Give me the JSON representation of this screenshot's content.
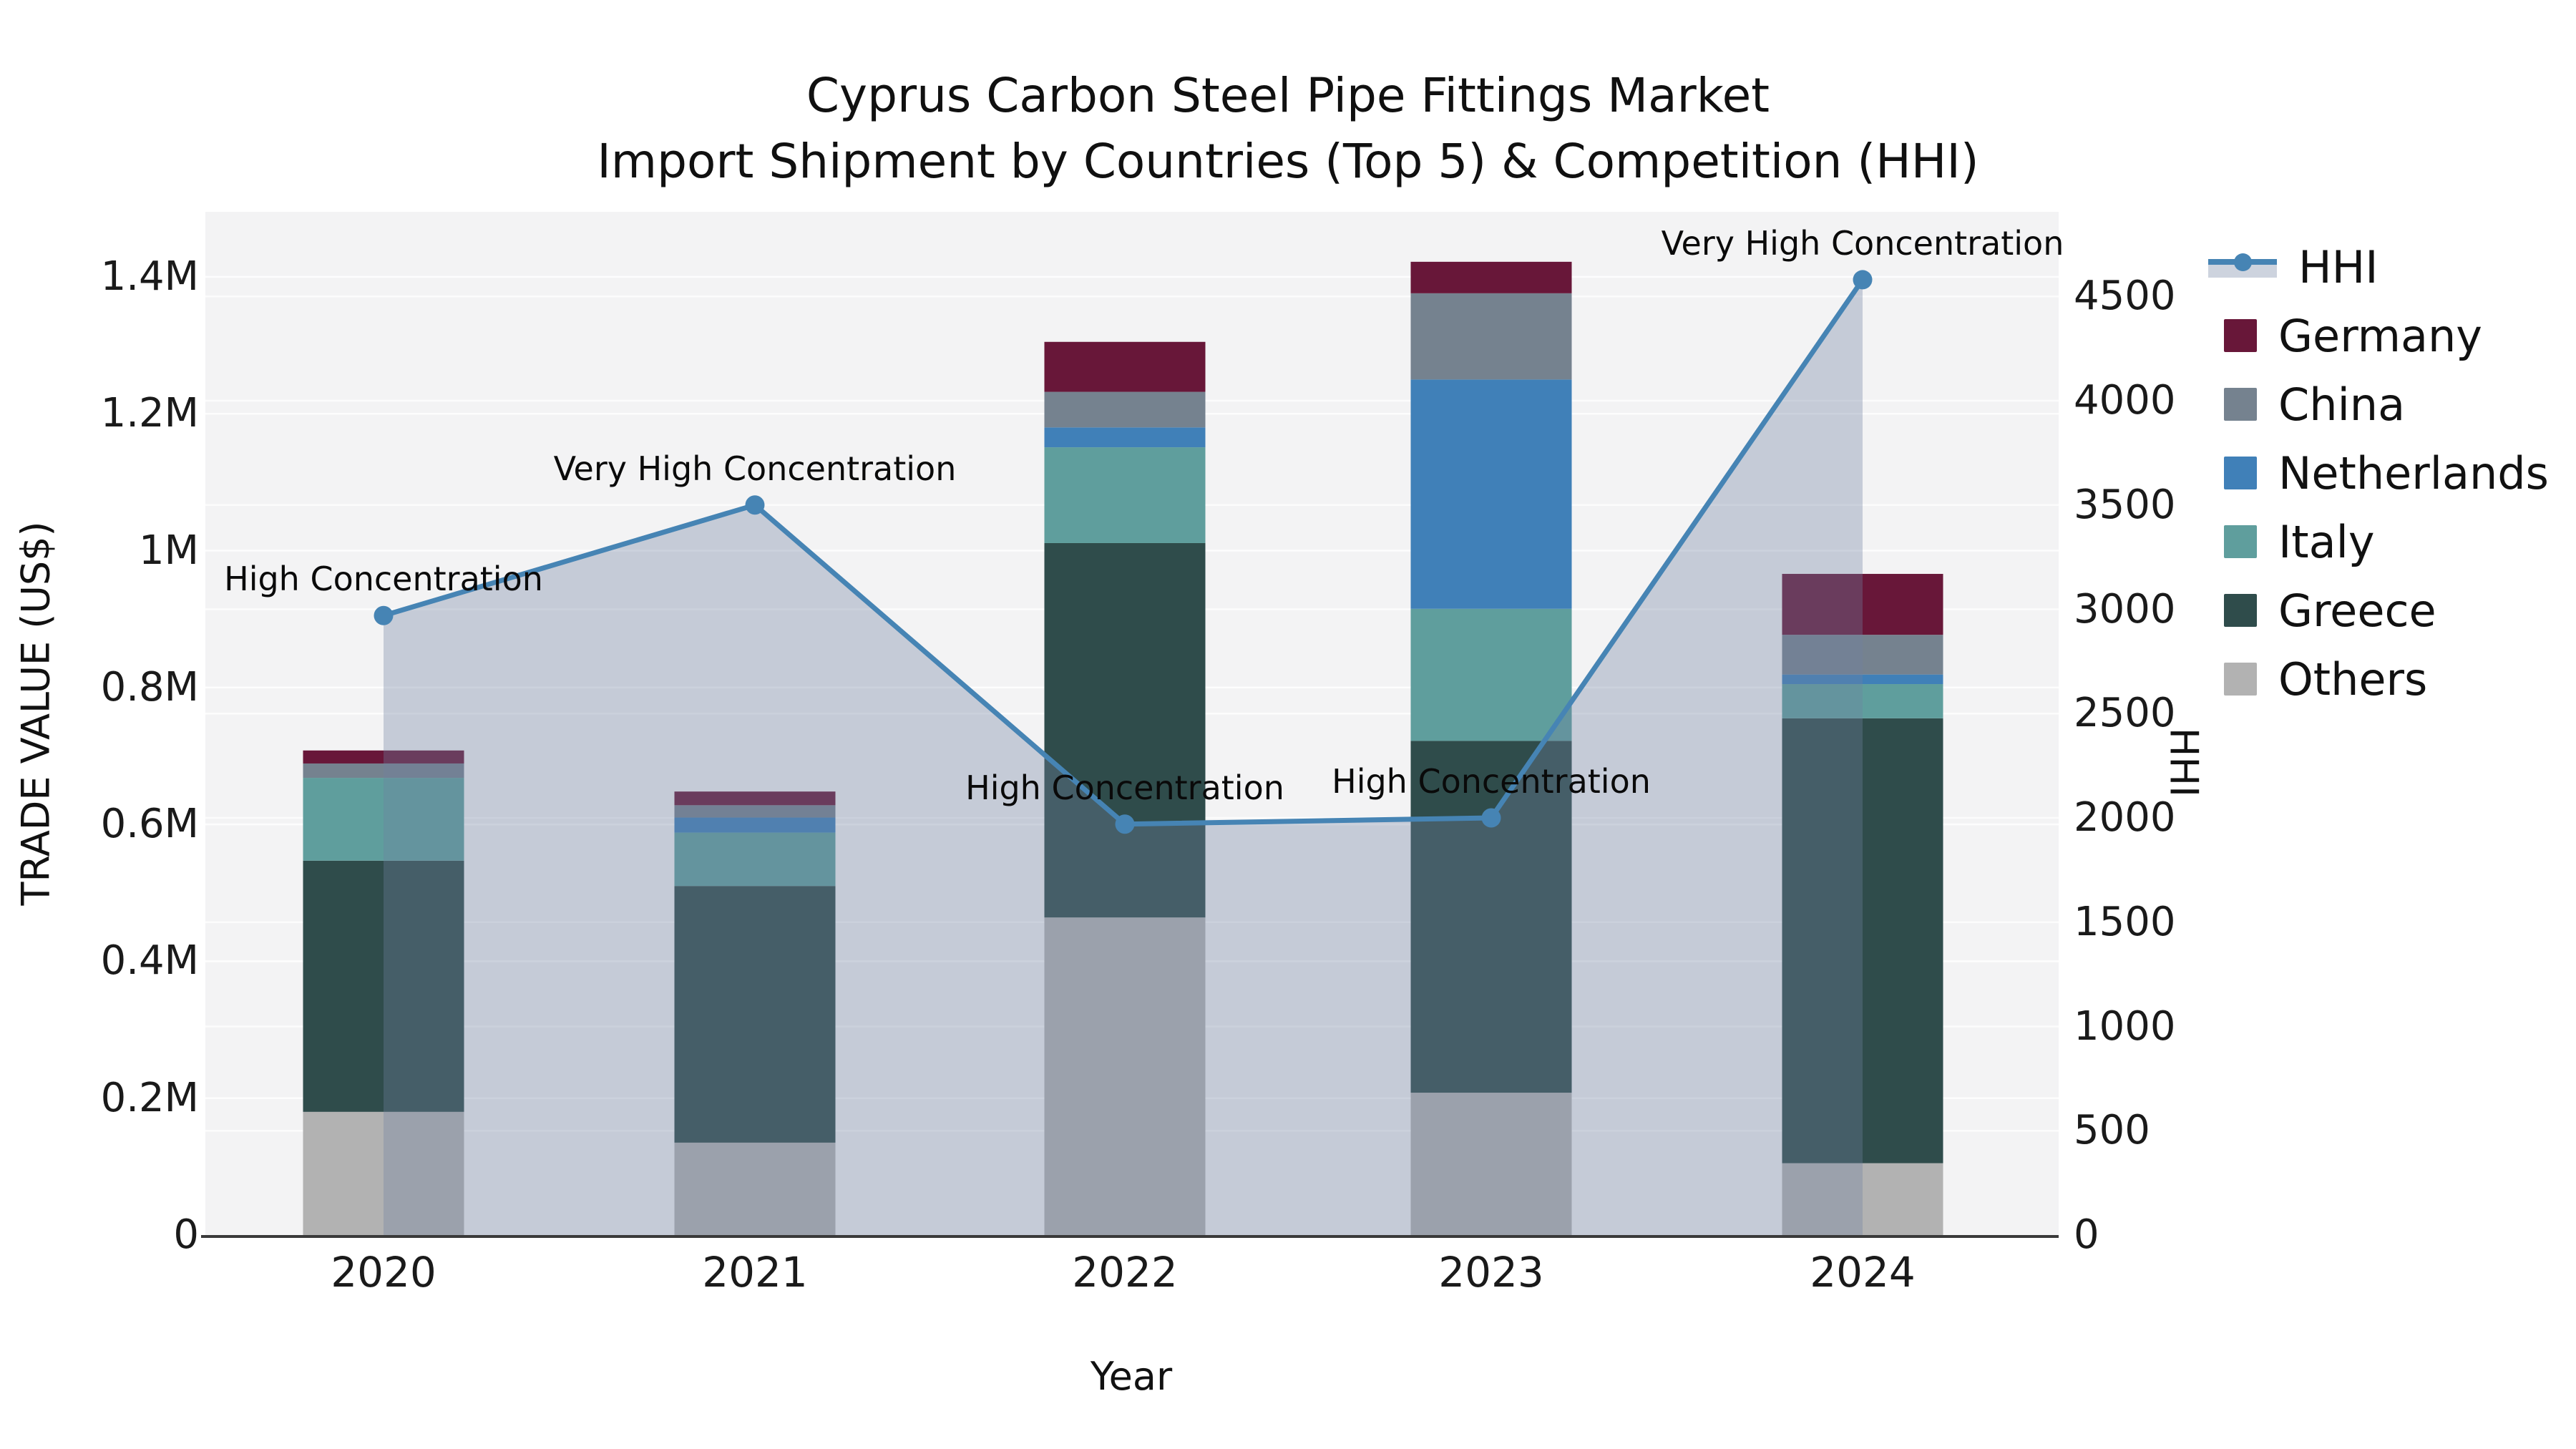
{
  "chart_data": {
    "type": "combo_stacked_bar_line",
    "title": "Cyprus Carbon Steel Pipe Fittings Market",
    "subtitle": "Import Shipment by Countries (Top 5) & Competition (HHI)",
    "xlabel": "Year",
    "ylabel_left": "TRADE VALUE (US$)",
    "ylabel_right": "HHI",
    "categories": [
      "2020",
      "2021",
      "2022",
      "2023",
      "2024"
    ],
    "bar_unit": "million US$ (trade value)",
    "bar_series": [
      {
        "name": "Others",
        "color": "#b2b2b2",
        "values": [
          0.18,
          0.135,
          0.464,
          0.208,
          0.105
        ]
      },
      {
        "name": "Greece",
        "color": "#2f4c4b",
        "values": [
          0.367,
          0.375,
          0.547,
          0.514,
          0.65
        ]
      },
      {
        "name": "Italy",
        "color": "#5f9e9d",
        "values": [
          0.121,
          0.078,
          0.14,
          0.193,
          0.05
        ]
      },
      {
        "name": "Netherlands",
        "color": "#4080b8",
        "values": [
          0.0,
          0.022,
          0.029,
          0.335,
          0.014
        ]
      },
      {
        "name": "China",
        "color": "#75828f",
        "values": [
          0.021,
          0.018,
          0.052,
          0.126,
          0.058
        ]
      },
      {
        "name": "Germany",
        "color": "#681739",
        "values": [
          0.019,
          0.02,
          0.073,
          0.046,
          0.089
        ]
      }
    ],
    "line_series": {
      "name": "HHI",
      "color": "#4684b4",
      "fill_color": "#7080a0",
      "fill_opacity": 0.35,
      "values": [
        2970,
        3500,
        1970,
        2000,
        4580
      ]
    },
    "annotations": [
      {
        "year": "2020",
        "text": "High Concentration"
      },
      {
        "year": "2021",
        "text": "Very High Concentration"
      },
      {
        "year": "2022",
        "text": "High Concentration"
      },
      {
        "year": "2023",
        "text": "High Concentration"
      },
      {
        "year": "2024",
        "text": "Very High Concentration"
      }
    ],
    "axis_left": {
      "ticks": [
        "0",
        "0.2M",
        "0.4M",
        "0.6M",
        "0.8M",
        "1M",
        "1.2M",
        "1.4M"
      ],
      "tick_values_M": [
        0,
        0.2,
        0.4,
        0.6,
        0.8,
        1.0,
        1.2,
        1.4
      ],
      "range_M": [
        0,
        1.5
      ]
    },
    "axis_right": {
      "ticks": [
        "0",
        "500",
        "1000",
        "1500",
        "2000",
        "2500",
        "3000",
        "3500",
        "4000",
        "4500"
      ],
      "tick_values": [
        0,
        500,
        1000,
        1500,
        2000,
        2500,
        3000,
        3500,
        4000,
        4500
      ],
      "range": [
        0,
        4925
      ]
    },
    "legend_order": [
      "HHI",
      "Germany",
      "China",
      "Netherlands",
      "Italy",
      "Greece",
      "Others"
    ],
    "legend_position": "outside-top-right",
    "grid": true,
    "plot_bg_color": "#f3f3f4",
    "grid_color": "#ffffff",
    "spine_color": "#3a3a3a"
  }
}
